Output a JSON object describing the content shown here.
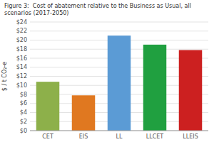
{
  "chart_data": {
    "type": "bar",
    "title": "Figure 3:  Cost of abatement relative to the Business as Usual, all scenarios (2017-2050)",
    "ylabel": "$ / t CO₂-e",
    "categories": [
      "CET",
      "EIS",
      "LL",
      "LLCET",
      "LLEIS"
    ],
    "values": [
      10.8,
      7.8,
      21.0,
      19.0,
      17.8
    ],
    "colors": [
      "#8db04a",
      "#e07820",
      "#5b9bd5",
      "#20a040",
      "#cc2020"
    ],
    "ylim": [
      0,
      24
    ],
    "yticks": [
      {
        "value": 0,
        "label": "$0"
      },
      {
        "value": 2,
        "label": "$2"
      },
      {
        "value": 4,
        "label": "$4"
      },
      {
        "value": 6,
        "label": "$6"
      },
      {
        "value": 8,
        "label": "$8"
      },
      {
        "value": 10,
        "label": "$10"
      },
      {
        "value": 12,
        "label": "$12"
      },
      {
        "value": 14,
        "label": "$14"
      },
      {
        "value": 16,
        "label": "$16"
      },
      {
        "value": 18,
        "label": "$18"
      },
      {
        "value": 20,
        "label": "$20"
      },
      {
        "value": 22,
        "label": "$22"
      },
      {
        "value": 24,
        "label": "$24"
      }
    ],
    "grid": true
  }
}
